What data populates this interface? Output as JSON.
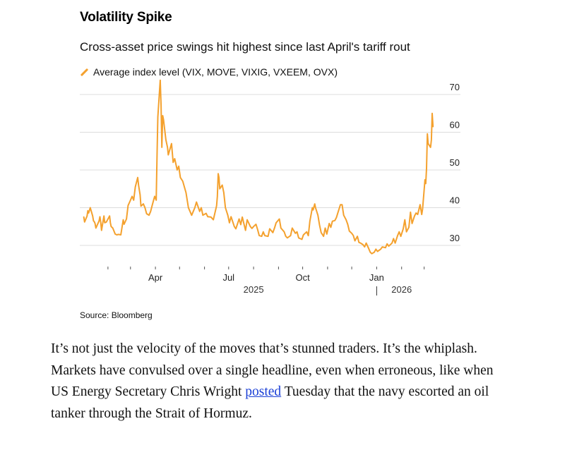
{
  "chart_data": {
    "type": "line",
    "title": "Volatility Spike",
    "subtitle": "Cross-asset price swings hit highest since last April's tariff rout",
    "legend": [
      {
        "label": "Average index level (VIX, MOVE, VIXIG, VXEEM, OVX)",
        "color": "#f4a12e"
      }
    ],
    "source": "Source: Bloomberg",
    "ylim": [
      27,
      73
    ],
    "yticks": [
      30,
      40,
      50,
      60,
      70
    ],
    "y_axis_side": "right",
    "grid": true,
    "xlim": [
      "2024-12-28",
      "2026-03-18"
    ],
    "month_ticks": [
      "2025-02-01",
      "2025-03-01",
      "2025-04-01",
      "2025-05-01",
      "2025-06-01",
      "2025-07-01",
      "2025-08-01",
      "2025-09-01",
      "2025-10-01",
      "2025-11-01",
      "2025-12-01",
      "2026-01-01",
      "2026-02-01",
      "2026-03-01"
    ],
    "x_labels": [
      {
        "date": "2025-04-01",
        "label": "Apr"
      },
      {
        "date": "2025-07-01",
        "label": "Jul"
      },
      {
        "date": "2025-10-01",
        "label": "Oct"
      },
      {
        "date": "2026-01-01",
        "label": "Jan"
      }
    ],
    "year_labels": [
      {
        "date": "2025-08-01",
        "label": "2025"
      },
      {
        "date": "2026-02-01",
        "label": "2026"
      }
    ],
    "year_divider": "2026-01-01",
    "series": [
      {
        "name": "Average index level (VIX, MOVE, VIXIG, VXEEM, OVX)",
        "color": "#f4a12e",
        "points": [
          [
            "2025-01-02",
            37.5
          ],
          [
            "2025-01-03",
            36.2
          ],
          [
            "2025-01-06",
            37.8
          ],
          [
            "2025-01-07",
            39.2
          ],
          [
            "2025-01-08",
            38.6
          ],
          [
            "2025-01-10",
            40.0
          ],
          [
            "2025-01-13",
            37.8
          ],
          [
            "2025-01-14",
            36.5
          ],
          [
            "2025-01-15",
            36.3
          ],
          [
            "2025-01-16",
            35.8
          ],
          [
            "2025-01-17",
            34.6
          ],
          [
            "2025-01-21",
            36.5
          ],
          [
            "2025-01-22",
            37.6
          ],
          [
            "2025-01-23",
            36.2
          ],
          [
            "2025-01-24",
            34.0
          ],
          [
            "2025-01-27",
            37.8
          ],
          [
            "2025-01-28",
            36.0
          ],
          [
            "2025-01-30",
            36.2
          ],
          [
            "2025-02-03",
            37.8
          ],
          [
            "2025-02-04",
            36.0
          ],
          [
            "2025-02-05",
            35.0
          ],
          [
            "2025-02-07",
            34.6
          ],
          [
            "2025-02-10",
            33.0
          ],
          [
            "2025-02-12",
            32.8
          ],
          [
            "2025-02-14",
            32.9
          ],
          [
            "2025-02-17",
            32.8
          ],
          [
            "2025-02-19",
            35.5
          ],
          [
            "2025-02-20",
            36.8
          ],
          [
            "2025-02-21",
            35.6
          ],
          [
            "2025-02-24",
            37.0
          ],
          [
            "2025-02-26",
            40.6
          ],
          [
            "2025-02-28",
            41.5
          ],
          [
            "2025-03-03",
            43.0
          ],
          [
            "2025-03-05",
            42.0
          ],
          [
            "2025-03-07",
            45.5
          ],
          [
            "2025-03-10",
            48.0
          ],
          [
            "2025-03-11",
            46.0
          ],
          [
            "2025-03-13",
            43.4
          ],
          [
            "2025-03-14",
            40.4
          ],
          [
            "2025-03-17",
            41.0
          ],
          [
            "2025-03-19",
            40.0
          ],
          [
            "2025-03-21",
            38.4
          ],
          [
            "2025-03-24",
            38.0
          ],
          [
            "2025-03-26",
            39.0
          ],
          [
            "2025-03-28",
            40.6
          ],
          [
            "2025-03-31",
            43.0
          ],
          [
            "2025-04-02",
            42.0
          ],
          [
            "2025-04-03",
            54.0
          ],
          [
            "2025-04-04",
            64.0
          ],
          [
            "2025-04-07",
            73.8
          ],
          [
            "2025-04-08",
            67.0
          ],
          [
            "2025-04-09",
            56.0
          ],
          [
            "2025-04-10",
            64.4
          ],
          [
            "2025-04-11",
            63.4
          ],
          [
            "2025-04-14",
            58.0
          ],
          [
            "2025-04-16",
            56.0
          ],
          [
            "2025-04-17",
            54.0
          ],
          [
            "2025-04-21",
            57.0
          ],
          [
            "2025-04-23",
            52.0
          ],
          [
            "2025-04-25",
            53.0
          ],
          [
            "2025-04-28",
            50.0
          ],
          [
            "2025-04-30",
            51.0
          ],
          [
            "2025-05-02",
            48.0
          ],
          [
            "2025-05-05",
            47.0
          ],
          [
            "2025-05-07",
            45.5
          ],
          [
            "2025-05-09",
            44.0
          ],
          [
            "2025-05-12",
            40.0
          ],
          [
            "2025-05-14",
            39.0
          ],
          [
            "2025-05-16",
            38.0
          ],
          [
            "2025-05-20",
            40.0
          ],
          [
            "2025-05-22",
            41.5
          ],
          [
            "2025-05-26",
            39.0
          ],
          [
            "2025-05-28",
            40.0
          ],
          [
            "2025-05-30",
            38.0
          ],
          [
            "2025-06-03",
            38.5
          ],
          [
            "2025-06-05",
            37.6
          ],
          [
            "2025-06-09",
            37.5
          ],
          [
            "2025-06-12",
            36.8
          ],
          [
            "2025-06-16",
            40.5
          ],
          [
            "2025-06-17",
            43.0
          ],
          [
            "2025-06-18",
            49.0
          ],
          [
            "2025-06-19",
            48.0
          ],
          [
            "2025-06-20",
            45.0
          ],
          [
            "2025-06-23",
            46.0
          ],
          [
            "2025-06-25",
            44.0
          ],
          [
            "2025-06-27",
            40.0
          ],
          [
            "2025-06-30",
            38.0
          ],
          [
            "2025-07-02",
            36.0
          ],
          [
            "2025-07-04",
            37.6
          ],
          [
            "2025-07-08",
            35.0
          ],
          [
            "2025-07-10",
            34.4
          ],
          [
            "2025-07-14",
            37.0
          ],
          [
            "2025-07-16",
            35.5
          ],
          [
            "2025-07-18",
            37.5
          ],
          [
            "2025-07-22",
            34.0
          ],
          [
            "2025-07-24",
            36.8
          ],
          [
            "2025-07-28",
            35.0
          ],
          [
            "2025-07-30",
            34.5
          ],
          [
            "2025-08-01",
            35.0
          ],
          [
            "2025-08-04",
            35.6
          ],
          [
            "2025-08-06",
            34.2
          ],
          [
            "2025-08-08",
            32.6
          ],
          [
            "2025-08-11",
            32.4
          ],
          [
            "2025-08-13",
            33.6
          ],
          [
            "2025-08-15",
            32.6
          ],
          [
            "2025-08-19",
            32.4
          ],
          [
            "2025-08-21",
            34.4
          ],
          [
            "2025-08-25",
            33.4
          ],
          [
            "2025-08-27",
            34.6
          ],
          [
            "2025-08-29",
            36.0
          ],
          [
            "2025-09-02",
            37.0
          ],
          [
            "2025-09-04",
            34.6
          ],
          [
            "2025-09-08",
            33.6
          ],
          [
            "2025-09-10",
            32.4
          ],
          [
            "2025-09-12",
            32.0
          ],
          [
            "2025-09-16",
            32.6
          ],
          [
            "2025-09-18",
            34.6
          ],
          [
            "2025-09-22",
            33.2
          ],
          [
            "2025-09-24",
            33.6
          ],
          [
            "2025-09-26",
            32.0
          ],
          [
            "2025-09-30",
            31.6
          ],
          [
            "2025-10-02",
            32.8
          ],
          [
            "2025-10-06",
            33.6
          ],
          [
            "2025-10-08",
            32.6
          ],
          [
            "2025-10-10",
            36.4
          ],
          [
            "2025-10-13",
            40.0
          ],
          [
            "2025-10-14",
            39.4
          ],
          [
            "2025-10-16",
            41.0
          ],
          [
            "2025-10-17",
            40.0
          ],
          [
            "2025-10-20",
            38.0
          ],
          [
            "2025-10-22",
            35.4
          ],
          [
            "2025-10-24",
            33.4
          ],
          [
            "2025-10-27",
            32.4
          ],
          [
            "2025-10-29",
            34.6
          ],
          [
            "2025-10-31",
            33.0
          ],
          [
            "2025-11-03",
            35.8
          ],
          [
            "2025-11-05",
            34.8
          ],
          [
            "2025-11-07",
            36.4
          ],
          [
            "2025-11-10",
            36.6
          ],
          [
            "2025-11-12",
            37.4
          ],
          [
            "2025-11-14",
            38.8
          ],
          [
            "2025-11-17",
            40.8
          ],
          [
            "2025-11-19",
            40.8
          ],
          [
            "2025-11-21",
            38.0
          ],
          [
            "2025-11-24",
            36.8
          ],
          [
            "2025-11-26",
            35.6
          ],
          [
            "2025-11-28",
            33.8
          ],
          [
            "2025-12-01",
            33.2
          ],
          [
            "2025-12-03",
            32.6
          ],
          [
            "2025-12-05",
            31.2
          ],
          [
            "2025-12-08",
            32.4
          ],
          [
            "2025-12-10",
            30.8
          ],
          [
            "2025-12-12",
            30.6
          ],
          [
            "2025-12-15",
            30.2
          ],
          [
            "2025-12-17",
            29.6
          ],
          [
            "2025-12-19",
            30.6
          ],
          [
            "2025-12-22",
            29.2
          ],
          [
            "2025-12-24",
            28.2
          ],
          [
            "2025-12-26",
            27.8
          ],
          [
            "2025-12-29",
            28.2
          ],
          [
            "2025-12-31",
            29.0
          ],
          [
            "2026-01-02",
            28.4
          ],
          [
            "2026-01-06",
            29.0
          ],
          [
            "2026-01-08",
            29.6
          ],
          [
            "2026-01-12",
            29.4
          ],
          [
            "2026-01-14",
            30.4
          ],
          [
            "2026-01-16",
            29.8
          ],
          [
            "2026-01-20",
            30.6
          ],
          [
            "2026-01-22",
            31.8
          ],
          [
            "2026-01-24",
            30.6
          ],
          [
            "2026-01-27",
            32.6
          ],
          [
            "2026-01-29",
            33.6
          ],
          [
            "2026-01-31",
            32.4
          ],
          [
            "2026-02-03",
            34.4
          ],
          [
            "2026-02-05",
            36.8
          ],
          [
            "2026-02-07",
            33.6
          ],
          [
            "2026-02-10",
            34.8
          ],
          [
            "2026-02-12",
            38.8
          ],
          [
            "2026-02-14",
            35.8
          ],
          [
            "2026-02-17",
            37.8
          ],
          [
            "2026-02-19",
            38.6
          ],
          [
            "2026-02-21",
            38.2
          ],
          [
            "2026-02-24",
            40.8
          ],
          [
            "2026-02-26",
            38.2
          ],
          [
            "2026-02-27",
            39.6
          ],
          [
            "2026-03-02",
            47.4
          ],
          [
            "2026-03-03",
            46.4
          ],
          [
            "2026-03-04",
            50.4
          ],
          [
            "2026-03-05",
            59.6
          ],
          [
            "2026-03-06",
            57.0
          ],
          [
            "2026-03-09",
            56.0
          ],
          [
            "2026-03-10",
            58.0
          ],
          [
            "2026-03-11",
            65.0
          ],
          [
            "2026-03-12",
            61.5
          ]
        ]
      }
    ]
  },
  "article": {
    "text_before_link": "It’s not just the velocity of the moves that’s stunned traders. It’s the whiplash. Markets have convulsed over a single headline, even when erroneous, like when US Energy Secretary Chris Wright ",
    "link_text": "posted",
    "text_after_link": " Tuesday that the navy escorted an oil tanker through the Strait of Hormuz."
  }
}
